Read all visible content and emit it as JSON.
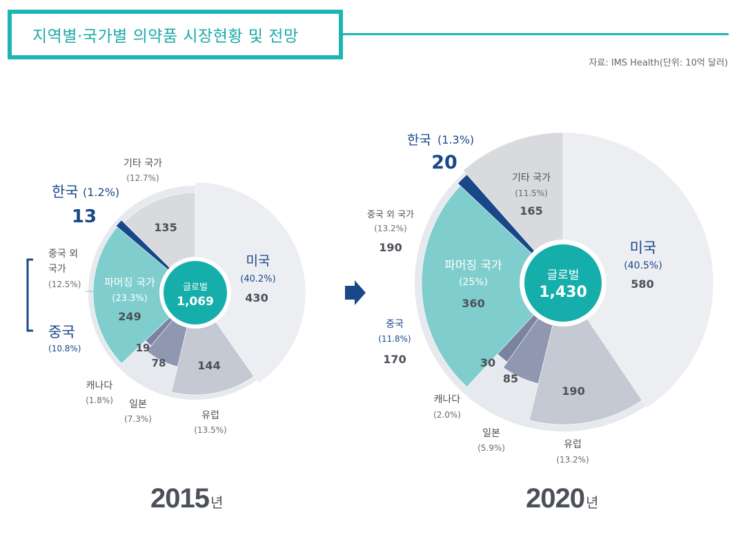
{
  "header": {
    "title": "지역별·국가별 의약품 시장현황 및 전망",
    "source": "자료: IMS Health(단위: 10억 달러)"
  },
  "colors": {
    "accent": "#1cb5b3",
    "usa": "#eceef2",
    "europe": "#c5c9d3",
    "japan": "#8f97b1",
    "canada": "#7a83a0",
    "pharmerging": "#7fcdcd",
    "korea": "#184887",
    "others": "#d9dadd"
  },
  "chart_data": [
    {
      "type": "pie",
      "title": "2015년",
      "year": "2015",
      "year_unit": "년",
      "center_label": "글로벌",
      "center_value": "1,069",
      "total": 1069,
      "slices": [
        {
          "key": "usa",
          "name": "미국",
          "pct": "(40.2%)",
          "value": 430
        },
        {
          "key": "europe",
          "name": "유럽",
          "pct": "(13.5%)",
          "value": 144
        },
        {
          "key": "japan",
          "name": "일본",
          "pct": "(7.3%)",
          "value": 78
        },
        {
          "key": "canada",
          "name": "캐나다",
          "pct": "(1.8%)",
          "value": 19
        },
        {
          "key": "pharmerging",
          "name": "파머징 국가",
          "pct": "(23.3%)",
          "value": 249
        },
        {
          "key": "korea",
          "name": "한국",
          "pct": "(1.2%)",
          "value": 13
        },
        {
          "key": "others",
          "name": "기타 국가",
          "pct": "(12.7%)",
          "value": 135
        }
      ],
      "sub_labels": {
        "china_other_name": "중국 외 국가",
        "china_other_pct": "(12.5%)",
        "china_name": "중국",
        "china_pct": "(10.8%)"
      }
    },
    {
      "type": "pie",
      "title": "2020년",
      "year": "2020",
      "year_unit": "년",
      "center_label": "글로벌",
      "center_value": "1,430",
      "total": 1430,
      "slices": [
        {
          "key": "usa",
          "name": "미국",
          "pct": "(40.5%)",
          "value": 580
        },
        {
          "key": "europe",
          "name": "유럽",
          "pct": "(13.2%)",
          "value": 190
        },
        {
          "key": "japan",
          "name": "일본",
          "pct": "(5.9%)",
          "value": 85
        },
        {
          "key": "canada",
          "name": "캐나다",
          "pct": "(2.0%)",
          "value": 30
        },
        {
          "key": "pharmerging",
          "name": "파머징 국가",
          "pct": "(25%)",
          "value": 360
        },
        {
          "key": "korea",
          "name": "한국",
          "pct": "(1.3%)",
          "value": 20
        },
        {
          "key": "others",
          "name": "기타 국가",
          "pct": "(11.5%)",
          "value": 165
        }
      ],
      "sub_labels": {
        "china_other_name": "중국 외 국가",
        "china_other_pct": "(13.2%)",
        "china_other_value": "190",
        "china_name": "중국",
        "china_pct": "(11.8%)",
        "china_value": "170"
      }
    }
  ]
}
